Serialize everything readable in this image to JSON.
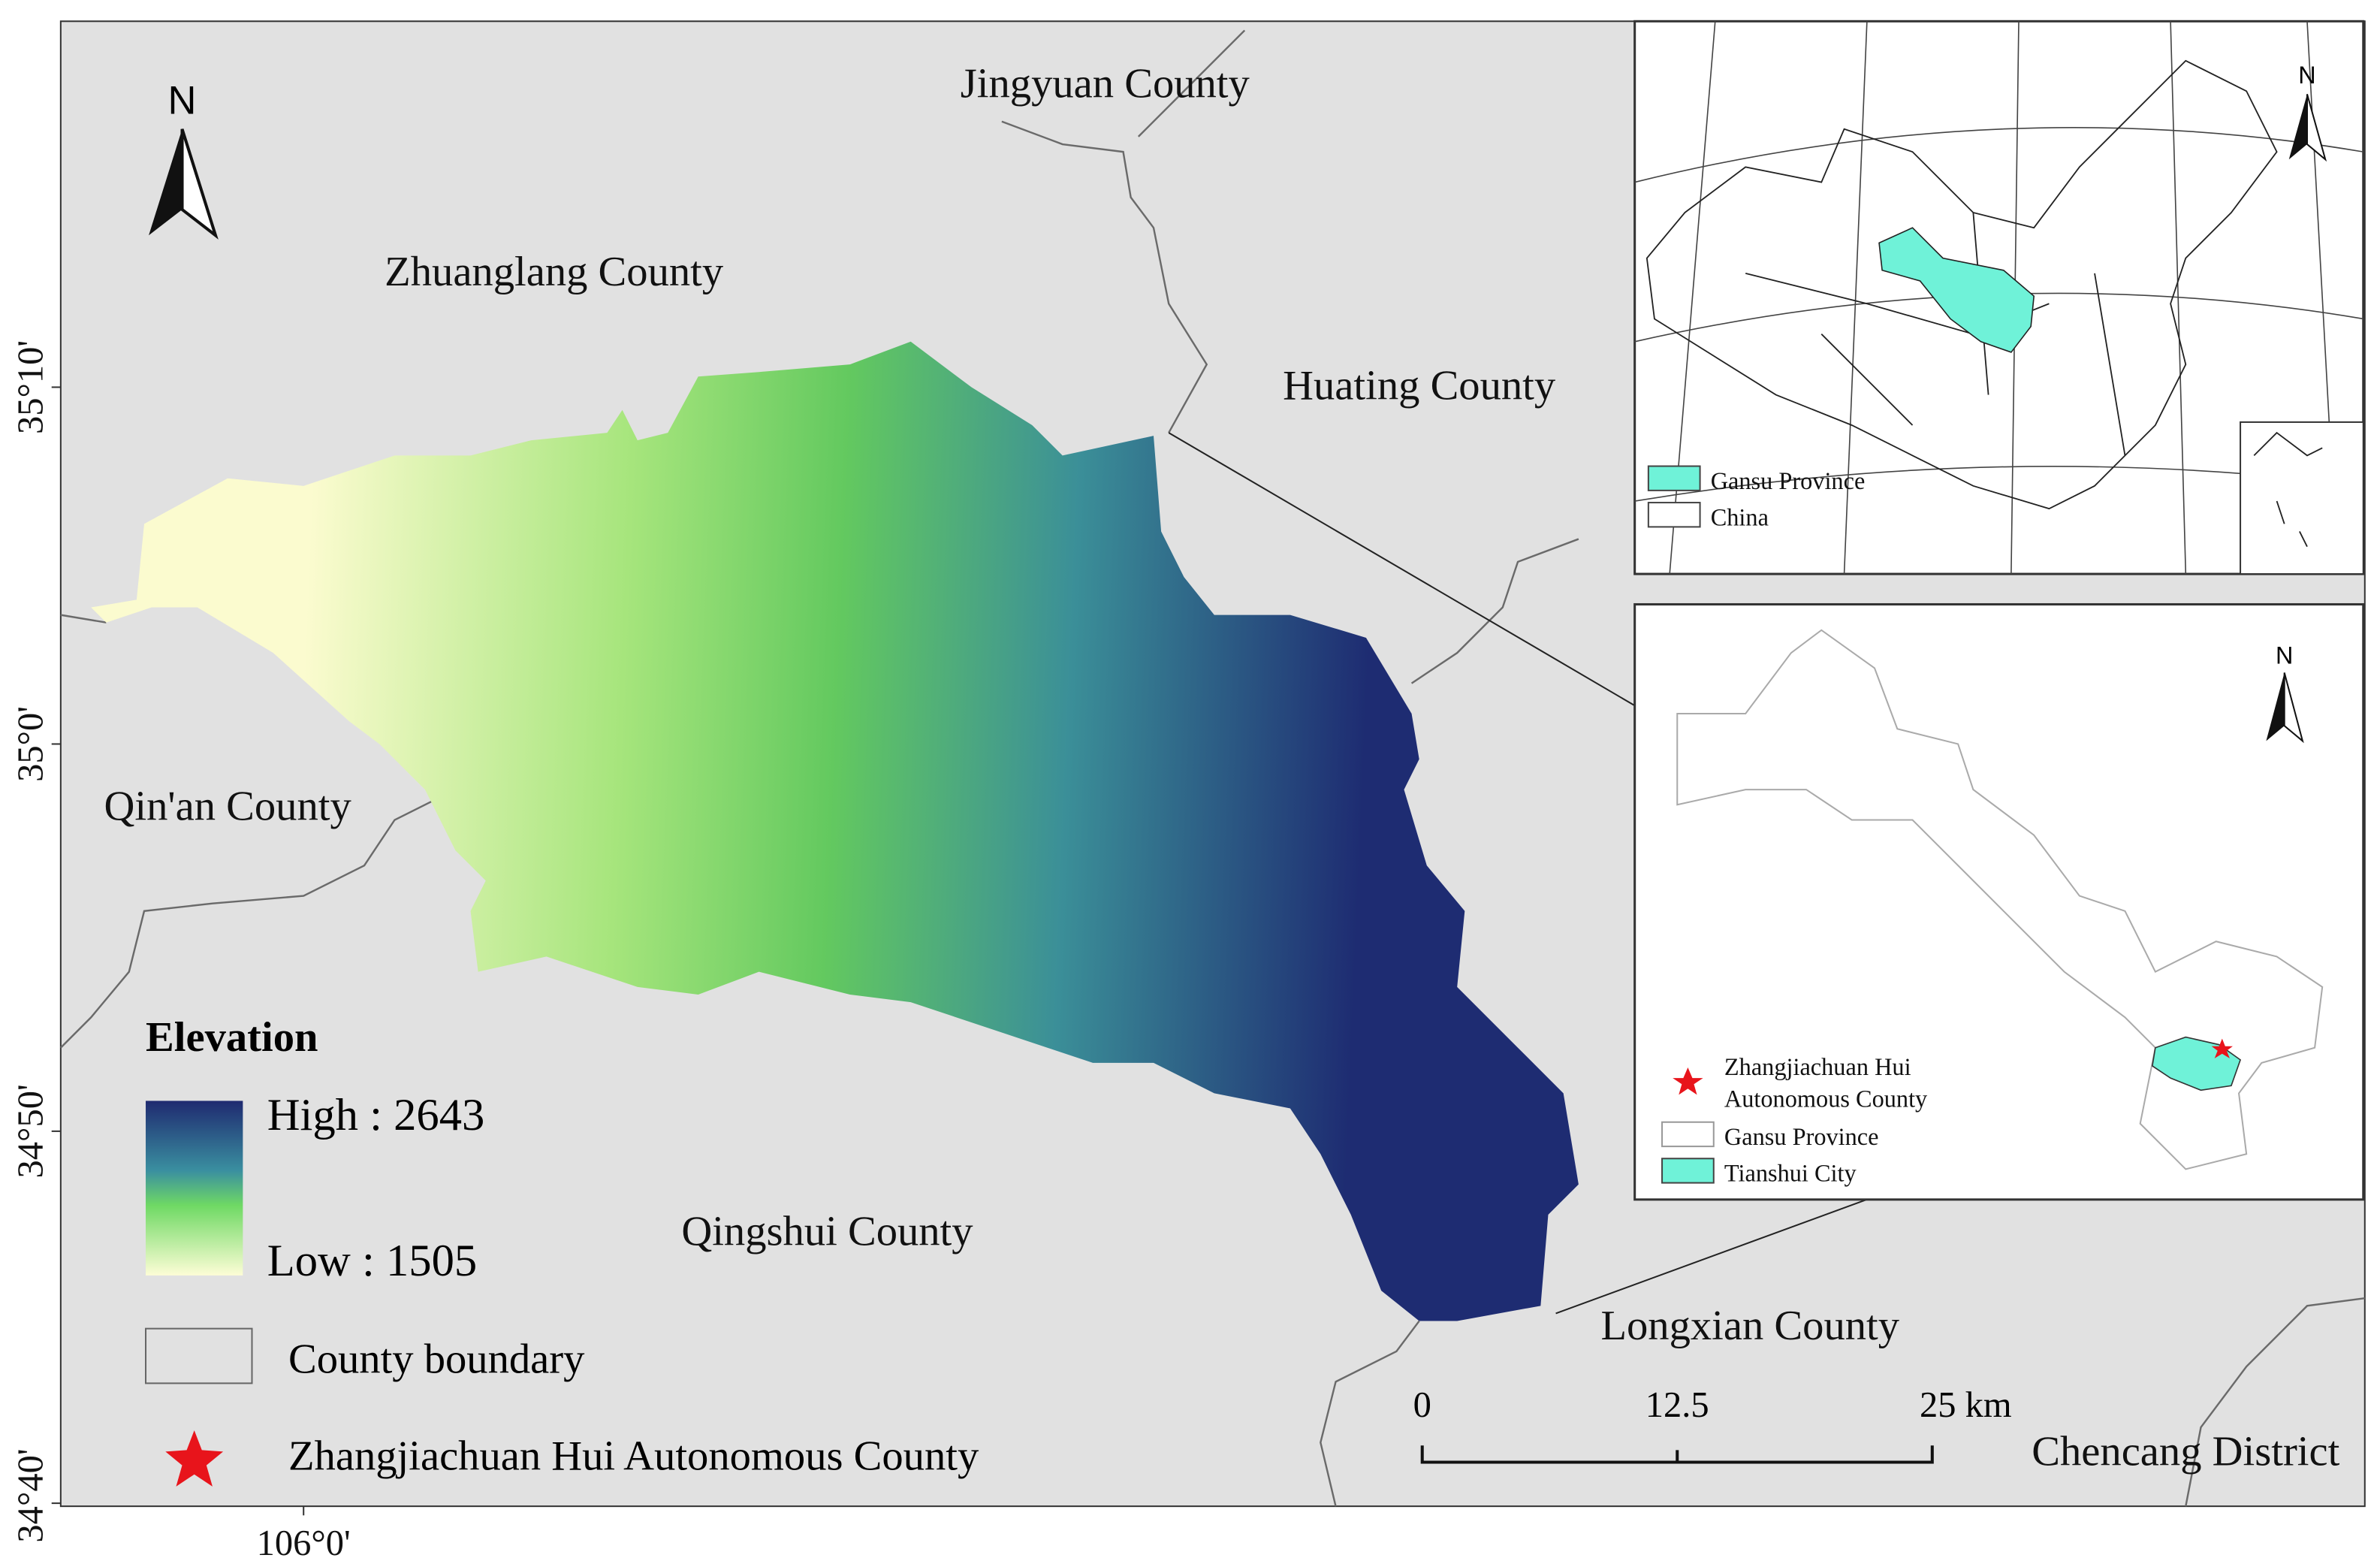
{
  "map": {
    "coordinate_labels": {
      "latitude": [
        "35°10'",
        "35°0'",
        "34°50'",
        "34°40'"
      ],
      "longitude": [
        "106°0'"
      ]
    },
    "north_label": "N",
    "place_labels": [
      "Jingyuan County",
      "Zhuanglang County",
      "Huating County",
      "Qin'an County",
      "Qingshui County",
      "Longxian County",
      "Chencang District"
    ],
    "legend": {
      "title": "Elevation",
      "high": "High : 2643",
      "low": "Low : 1505",
      "county_boundary": "County boundary",
      "star": "Zhangjiachuan Hui Autonomous County"
    },
    "scale_bar": {
      "labels": [
        "0",
        "12.5",
        "25 km"
      ]
    }
  },
  "inset_china": {
    "north_label": "N",
    "legend": [
      "Gansu Province",
      "China"
    ]
  },
  "inset_gansu": {
    "north_label": "N",
    "legend": {
      "star": [
        "Zhangjiachuan Hui",
        "Autonomous County"
      ],
      "province": "Gansu Province",
      "city": "Tianshui City"
    }
  }
}
